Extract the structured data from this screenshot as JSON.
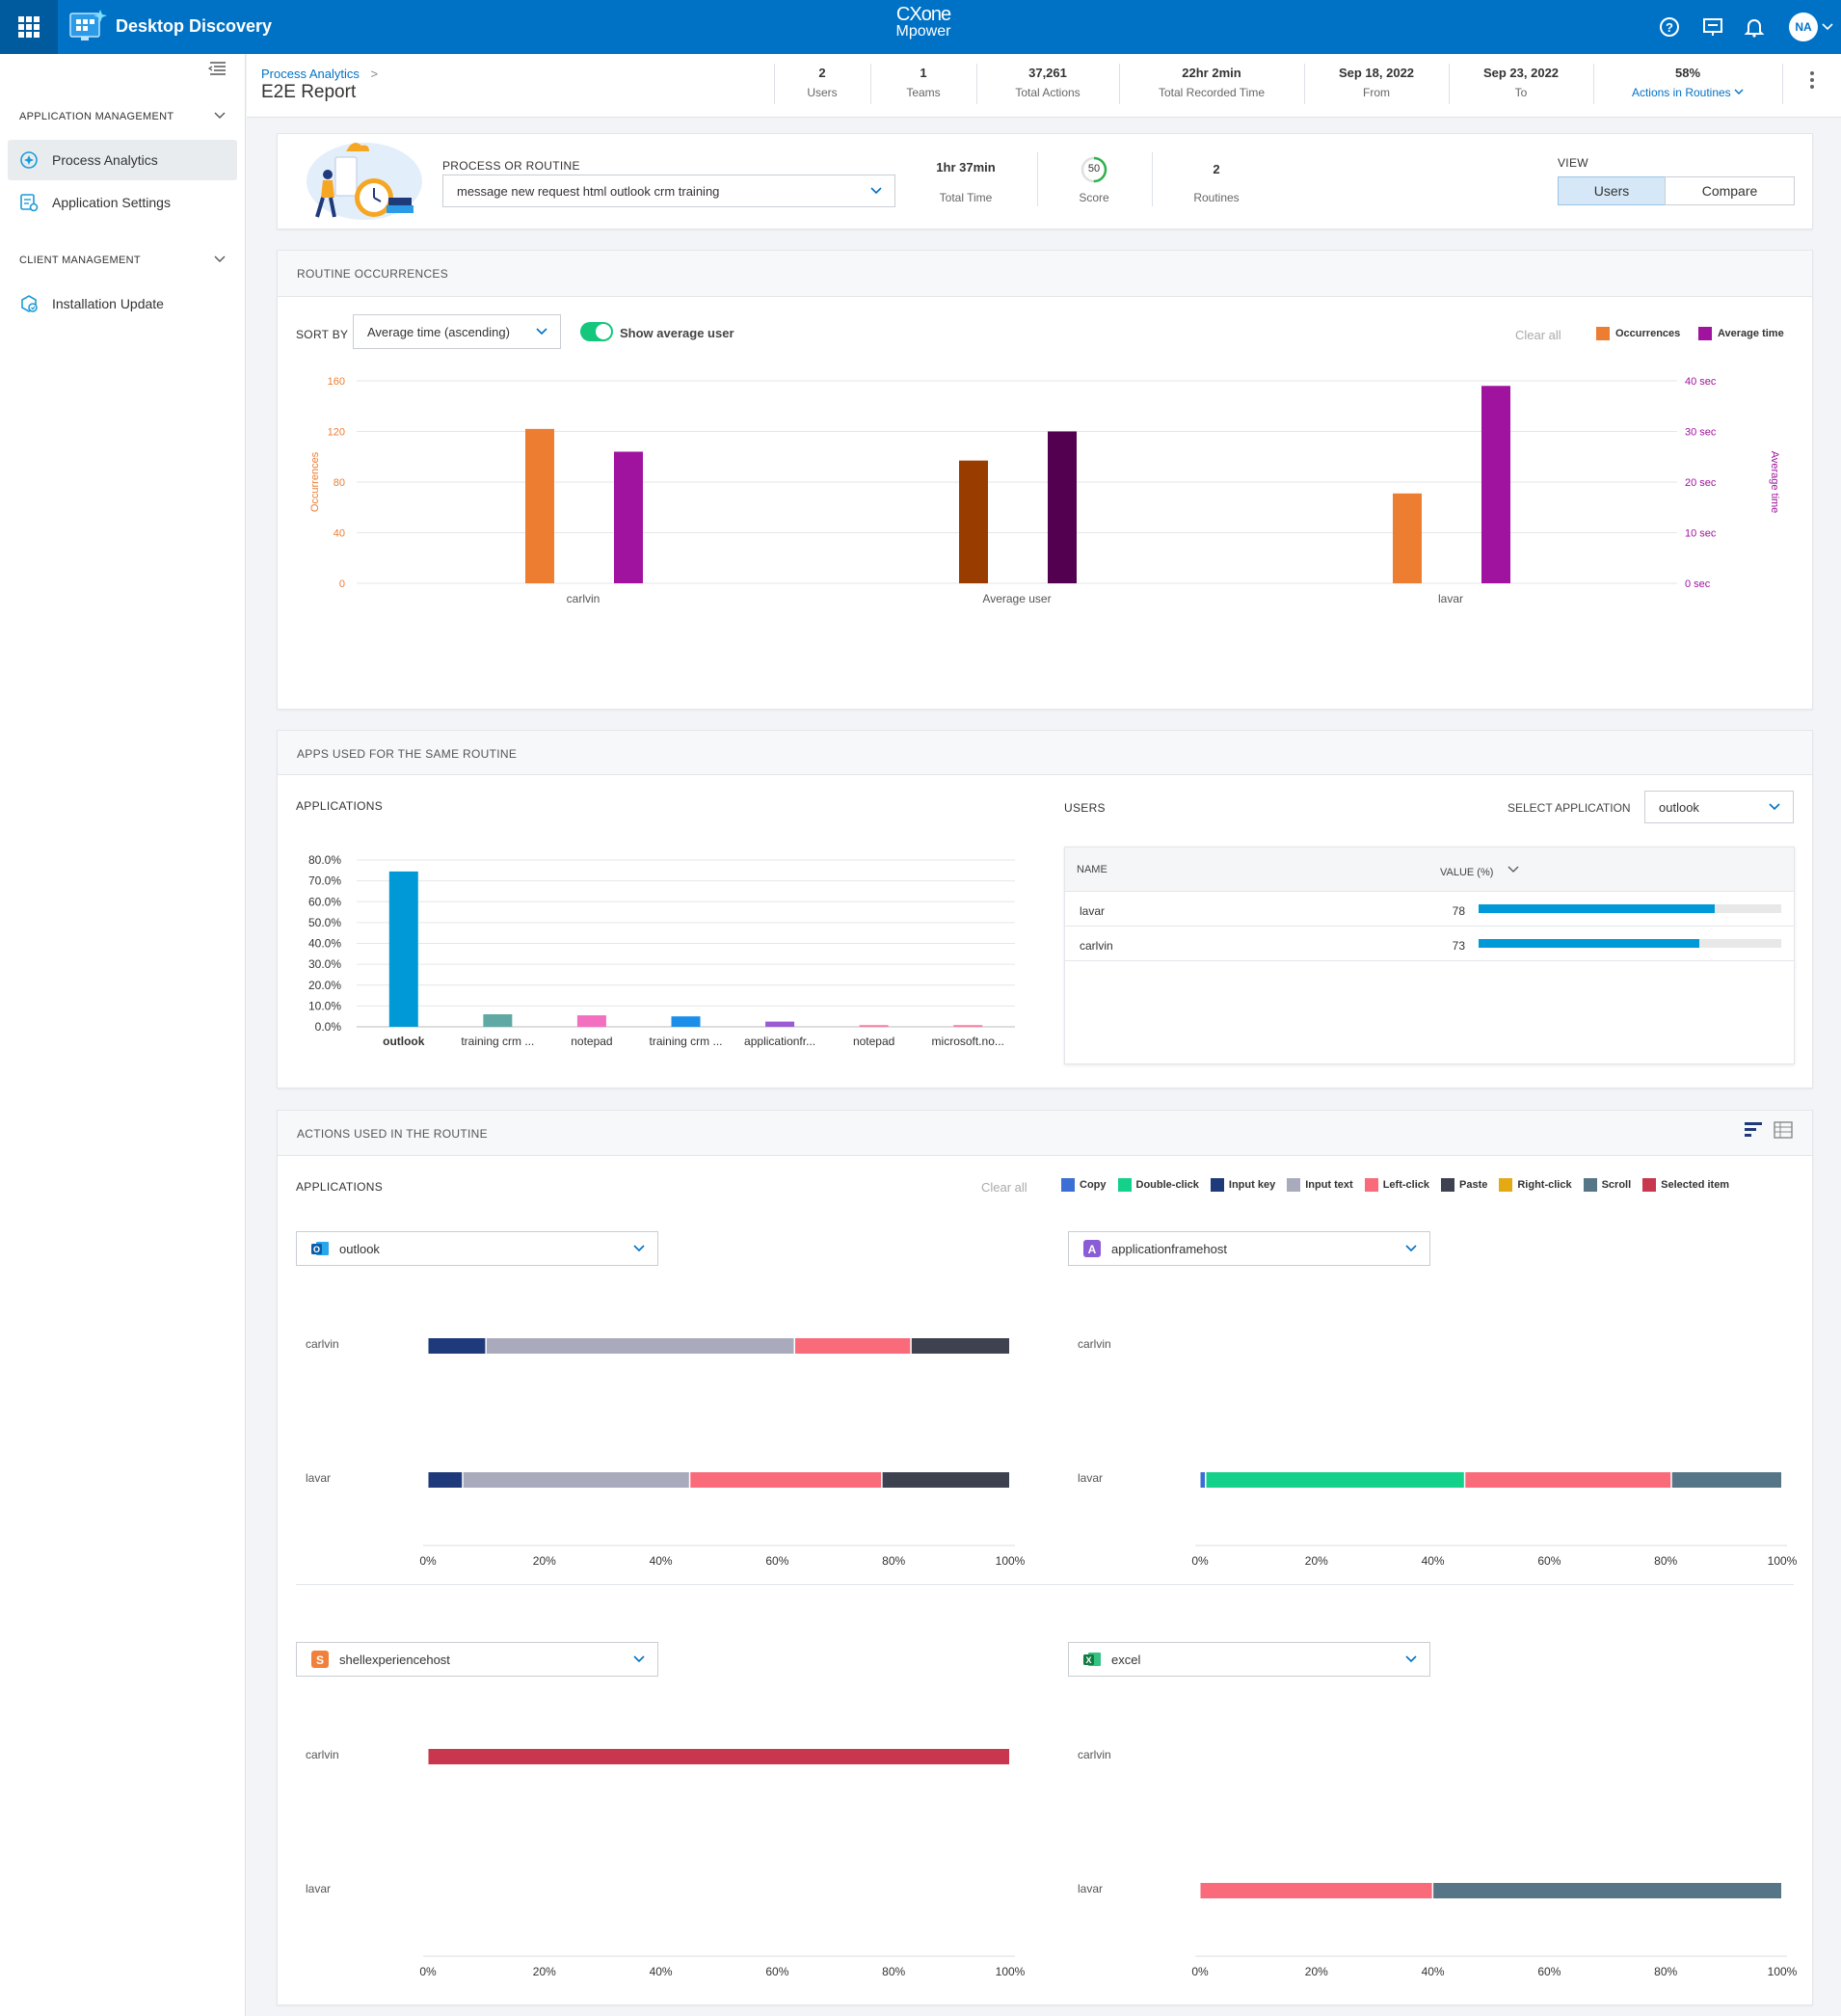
{
  "app": {
    "name": "Desktop Discovery",
    "brand_line1": "CXone",
    "brand_line2": "Mpower",
    "user_initials": "NA"
  },
  "sidebar": {
    "section1": "APPLICATION MANAGEMENT",
    "items1": [
      {
        "label": "Process Analytics"
      },
      {
        "label": "Application Settings"
      }
    ],
    "section2": "CLIENT MANAGEMENT",
    "items2": [
      {
        "label": "Installation Update"
      }
    ]
  },
  "header": {
    "breadcrumb": "Process Analytics",
    "breadcrumb_sep": ">",
    "title": "E2E Report",
    "stats": [
      {
        "value": "2",
        "label": "Users"
      },
      {
        "value": "1",
        "label": "Teams"
      },
      {
        "value": "37,261",
        "label": "Total Actions"
      },
      {
        "value": "22hr 2min",
        "label": "Total Recorded Time"
      },
      {
        "value": "Sep 18, 2022",
        "label": "From"
      },
      {
        "value": "Sep 23, 2022",
        "label": "To"
      },
      {
        "value": "58%",
        "label": "Actions in Routines"
      }
    ]
  },
  "summary": {
    "process_label": "PROCESS OR ROUTINE",
    "process_value": "message new request html outlook crm training",
    "total_time_value": "1hr 37min",
    "total_time_label": "Total Time",
    "score_value": "50",
    "score_label": "Score",
    "routines_value": "2",
    "routines_label": "Routines",
    "view_label": "VIEW",
    "view_users": "Users",
    "view_compare": "Compare"
  },
  "occurrences": {
    "title": "ROUTINE OCCURRENCES",
    "sort_label": "SORT BY",
    "sort_value": "Average time (ascending)",
    "toggle_label": "Show average user",
    "clear_all": "Clear all",
    "legend": [
      {
        "label": "Occurrences",
        "color": "#ed7d31"
      },
      {
        "label": "Average time",
        "color": "#a0139e"
      }
    ]
  },
  "apps_used": {
    "title": "APPS USED FOR THE SAME ROUTINE",
    "applications_label": "APPLICATIONS",
    "users_label": "USERS",
    "select_app_label": "SELECT APPLICATION",
    "select_app_value": "outlook",
    "table_headers": {
      "name": "NAME",
      "value": "VALUE (%)"
    },
    "users": [
      {
        "name": "lavar",
        "value": "78",
        "pct": 78
      },
      {
        "name": "carlvin",
        "value": "73",
        "pct": 73
      }
    ]
  },
  "actions": {
    "title": "ACTIONS USED IN THE ROUTINE",
    "applications_label": "APPLICATIONS",
    "clear_all": "Clear all",
    "legend": [
      {
        "label": "Copy",
        "color": "#3b6fd6"
      },
      {
        "label": "Double-click",
        "color": "#13d18a"
      },
      {
        "label": "Input key",
        "color": "#1f3a7a"
      },
      {
        "label": "Input text",
        "color": "#a9abbd"
      },
      {
        "label": "Left-click",
        "color": "#f96a7a"
      },
      {
        "label": "Paste",
        "color": "#3e4150"
      },
      {
        "label": "Right-click",
        "color": "#e3aa14"
      },
      {
        "label": "Scroll",
        "color": "#567687"
      },
      {
        "label": "Selected item",
        "color": "#c8374e"
      }
    ],
    "panels": [
      {
        "app": "outlook",
        "icon": "outlook-icon"
      },
      {
        "app": "applicationframehost",
        "icon": "app-a-icon"
      },
      {
        "app": "shellexperiencehost",
        "icon": "app-s-icon"
      },
      {
        "app": "excel",
        "icon": "excel-icon"
      }
    ]
  },
  "chart_data": [
    {
      "type": "bar",
      "title": "",
      "categories": [
        "carlvin",
        "Average user",
        "lavar"
      ],
      "series": [
        {
          "name": "Occurrences",
          "values": [
            122,
            97,
            71
          ],
          "axis": "left",
          "colors": [
            "#ed7d31",
            "#993c00",
            "#ed7d31"
          ]
        },
        {
          "name": "Average time",
          "values": [
            26,
            30,
            39
          ],
          "axis": "right",
          "colors": [
            "#a0139e",
            "#52004f",
            "#a0139e"
          ]
        }
      ],
      "ylabel": "Occurrences",
      "ylim": [
        0,
        160
      ],
      "yticks": [
        "0",
        "40",
        "80",
        "120",
        "160"
      ],
      "y2label": "Average time",
      "y2lim": [
        0,
        40
      ],
      "y2ticks": [
        "0 sec",
        "10 sec",
        "20 sec",
        "30 sec",
        "40 sec"
      ],
      "grid": true
    },
    {
      "type": "bar",
      "title": "",
      "categories": [
        "outlook",
        "training crm ...",
        "notepad",
        "training crm ...",
        "applicationfr...",
        "notepad",
        "microsoft.no..."
      ],
      "values": [
        74.5,
        6,
        5.5,
        5,
        2.5,
        0.8,
        0.8
      ],
      "colors": [
        "#0099d8",
        "#5fa8a3",
        "#f36fbf",
        "#1a8ee8",
        "#9a5bd4",
        "#f87a9c",
        "#f87a9c"
      ],
      "ylim": [
        0,
        80
      ],
      "yticks": [
        "0.0%",
        "10.0%",
        "20.0%",
        "30.0%",
        "40.0%",
        "50.0%",
        "60.0%",
        "70.0%",
        "80.0%"
      ],
      "grid": true
    },
    {
      "type": "bar",
      "title": "outlook",
      "stacked": true,
      "horizontal": true,
      "categories": [
        "carlvin",
        "lavar"
      ],
      "segments": [
        [
          {
            "action": "Input key",
            "pct": 10
          },
          {
            "action": "Input text",
            "pct": 53
          },
          {
            "action": "Left-click",
            "pct": 20
          },
          {
            "action": "Paste",
            "pct": 17
          }
        ],
        [
          {
            "action": "Input key",
            "pct": 6
          },
          {
            "action": "Input text",
            "pct": 39
          },
          {
            "action": "Left-click",
            "pct": 33
          },
          {
            "action": "Paste",
            "pct": 22
          }
        ]
      ],
      "xticks": [
        "0%",
        "20%",
        "40%",
        "60%",
        "80%",
        "100%"
      ]
    },
    {
      "type": "bar",
      "title": "applicationframehost",
      "stacked": true,
      "horizontal": true,
      "categories": [
        "carlvin",
        "lavar"
      ],
      "segments": [
        [],
        [
          {
            "action": "Copy",
            "pct": 1
          },
          {
            "action": "Double-click",
            "pct": 44.5
          },
          {
            "action": "Left-click",
            "pct": 35.5
          },
          {
            "action": "Scroll",
            "pct": 19
          }
        ]
      ],
      "xticks": [
        "0%",
        "20%",
        "40%",
        "60%",
        "80%",
        "100%"
      ]
    },
    {
      "type": "bar",
      "title": "shellexperiencehost",
      "stacked": true,
      "horizontal": true,
      "categories": [
        "carlvin",
        "lavar"
      ],
      "segments": [
        [
          {
            "action": "Selected item",
            "pct": 100
          }
        ],
        []
      ],
      "xticks": [
        "0%",
        "20%",
        "40%",
        "60%",
        "80%",
        "100%"
      ]
    },
    {
      "type": "bar",
      "title": "excel",
      "stacked": true,
      "horizontal": true,
      "categories": [
        "carlvin",
        "lavar"
      ],
      "segments": [
        [],
        [
          {
            "action": "Left-click",
            "pct": 40
          },
          {
            "action": "Scroll",
            "pct": 60
          }
        ]
      ],
      "xticks": [
        "0%",
        "20%",
        "40%",
        "60%",
        "80%",
        "100%"
      ]
    }
  ]
}
